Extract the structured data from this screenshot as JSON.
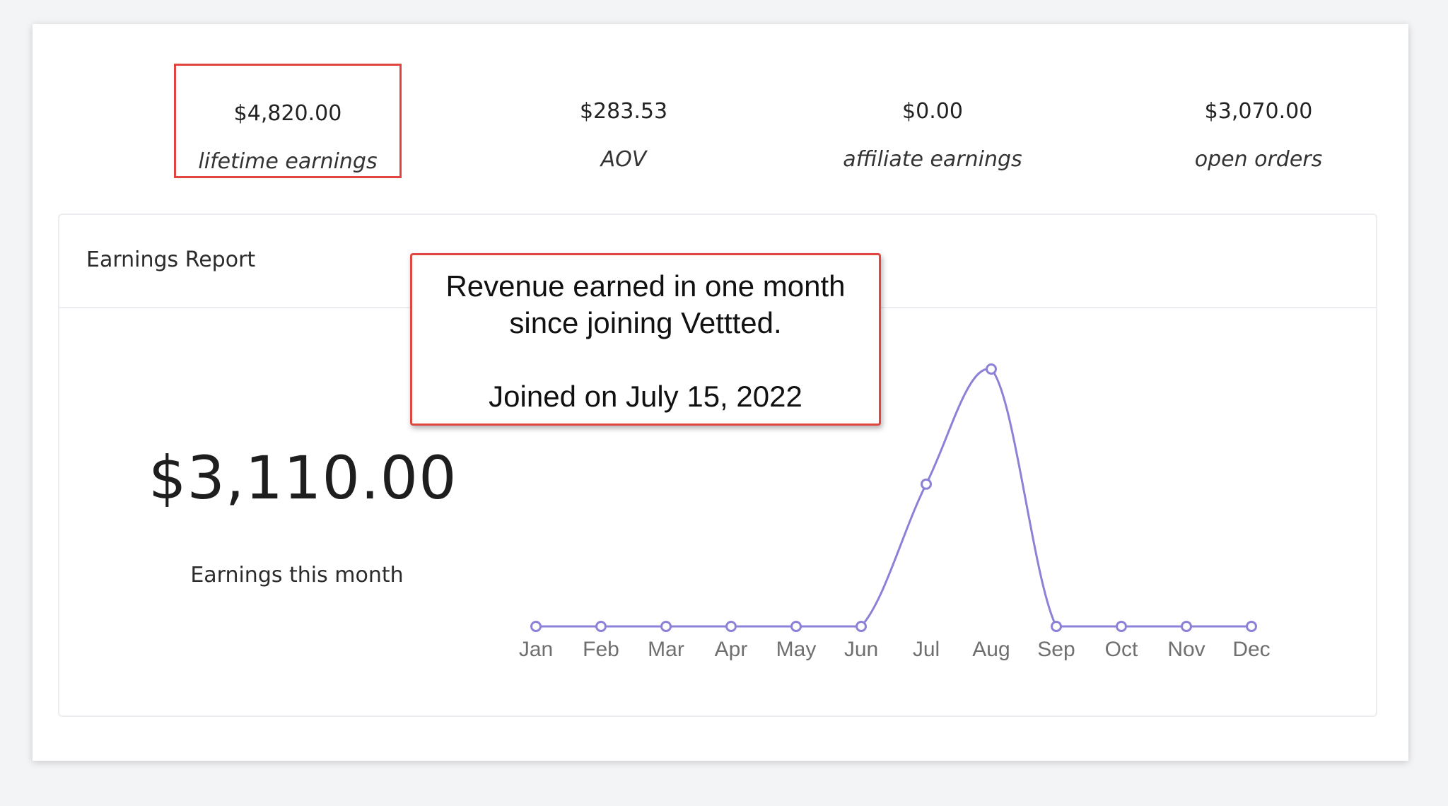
{
  "stats": [
    {
      "value": "$4,820.00",
      "label": "lifetime earnings",
      "highlighted": true
    },
    {
      "value": "$283.53",
      "label": "AOV",
      "highlighted": false
    },
    {
      "value": "$0.00",
      "label": "affiliate earnings",
      "highlighted": false
    },
    {
      "value": "$3,070.00",
      "label": "open orders",
      "highlighted": false
    }
  ],
  "report": {
    "title": "Earnings Report",
    "month_amount": "$3,110.00",
    "month_label": "Earnings this month"
  },
  "callout": {
    "line1": "Revenue earned in one month",
    "line2": "since joining Vettted.",
    "line3": "Joined on July 15, 2022"
  },
  "colors": {
    "accent_red": "#e0453f",
    "line": "#8b82d8"
  },
  "chart_data": {
    "type": "line",
    "categories": [
      "Jan",
      "Feb",
      "Mar",
      "Apr",
      "May",
      "Jun",
      "Jul",
      "Aug",
      "Sep",
      "Oct",
      "Nov",
      "Dec"
    ],
    "series": [
      {
        "values": [
          0,
          0,
          0,
          0,
          0,
          0,
          1720,
          3110,
          0,
          0,
          0,
          0
        ]
      }
    ],
    "ylim": [
      0,
      3110
    ],
    "grid": false,
    "legend": "none"
  }
}
